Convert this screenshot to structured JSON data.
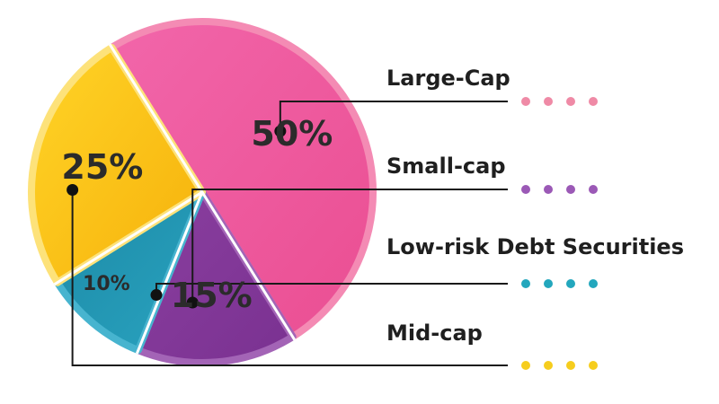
{
  "chart_data": {
    "type": "pie",
    "slices": [
      {
        "label": "Large-Cap",
        "value": 50,
        "value_label": "50%",
        "color": "#f05aa0",
        "edge": "#f48bb4",
        "dot": "#ef8aa6"
      },
      {
        "label": "Small-cap",
        "value": 15,
        "value_label": "15%",
        "color": "#823799",
        "edge": "#a364b6",
        "dot": "#9b59b6"
      },
      {
        "label": "Low-risk Debt Securities",
        "value": 10,
        "value_label": "10%",
        "color": "#1f94b0",
        "edge": "#47b4cf",
        "dot": "#23a7bd"
      },
      {
        "label": "Mid-cap",
        "value": 25,
        "value_label": "25%",
        "color": "#fcc20f",
        "edge": "#fde27a",
        "dot": "#f6cd1d"
      }
    ],
    "legend_placement": "right"
  }
}
